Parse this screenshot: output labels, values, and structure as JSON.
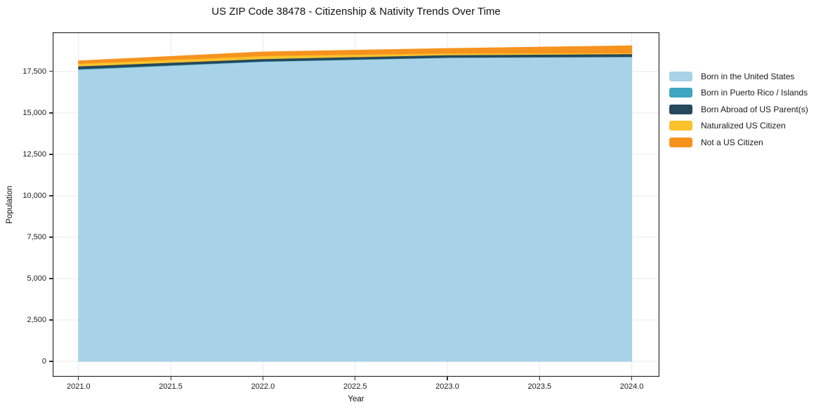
{
  "chart_data": {
    "type": "area",
    "stacked": true,
    "title": "US ZIP Code 38478 - Citizenship & Nativity Trends Over Time",
    "xlabel": "Year",
    "ylabel": "Population",
    "x": [
      2021,
      2022,
      2023,
      2024
    ],
    "series": [
      {
        "name": "Born in the United States",
        "color": "#a7d2e8",
        "values": [
          17620,
          18100,
          18340,
          18390
        ]
      },
      {
        "name": "Born in Puerto Rico / Islands",
        "color": "#3fa6c2",
        "values": [
          40,
          20,
          15,
          10
        ]
      },
      {
        "name": "Born Abroad of US Parent(s)",
        "color": "#26485c",
        "values": [
          170,
          150,
          150,
          170
        ]
      },
      {
        "name": "Naturalized US Citizen",
        "color": "#fcc22d",
        "values": [
          150,
          180,
          105,
          55
        ]
      },
      {
        "name": "Not a US Citizen",
        "color": "#f6931e",
        "values": [
          160,
          235,
          280,
          430
        ]
      }
    ],
    "xticks": [
      2021.0,
      2021.5,
      2022.0,
      2022.5,
      2023.0,
      2023.5,
      2024.0
    ],
    "xtick_labels": [
      "2021.0",
      "2021.5",
      "2022.0",
      "2022.5",
      "2023.0",
      "2023.5",
      "2024.0"
    ],
    "yticks": [
      0,
      2500,
      5000,
      7500,
      10000,
      12500,
      15000,
      17500
    ],
    "ytick_labels": [
      "0",
      "2,500",
      "5,000",
      "7,500",
      "10,000",
      "12,500",
      "15,000",
      "17,500"
    ],
    "xlim": [
      2020.86,
      2024.15
    ],
    "ylim": [
      -930,
      19870
    ],
    "grid": true,
    "grid_color": "#e8e8ee",
    "axis_color": "#2e2e2e",
    "legend_position": "right"
  }
}
